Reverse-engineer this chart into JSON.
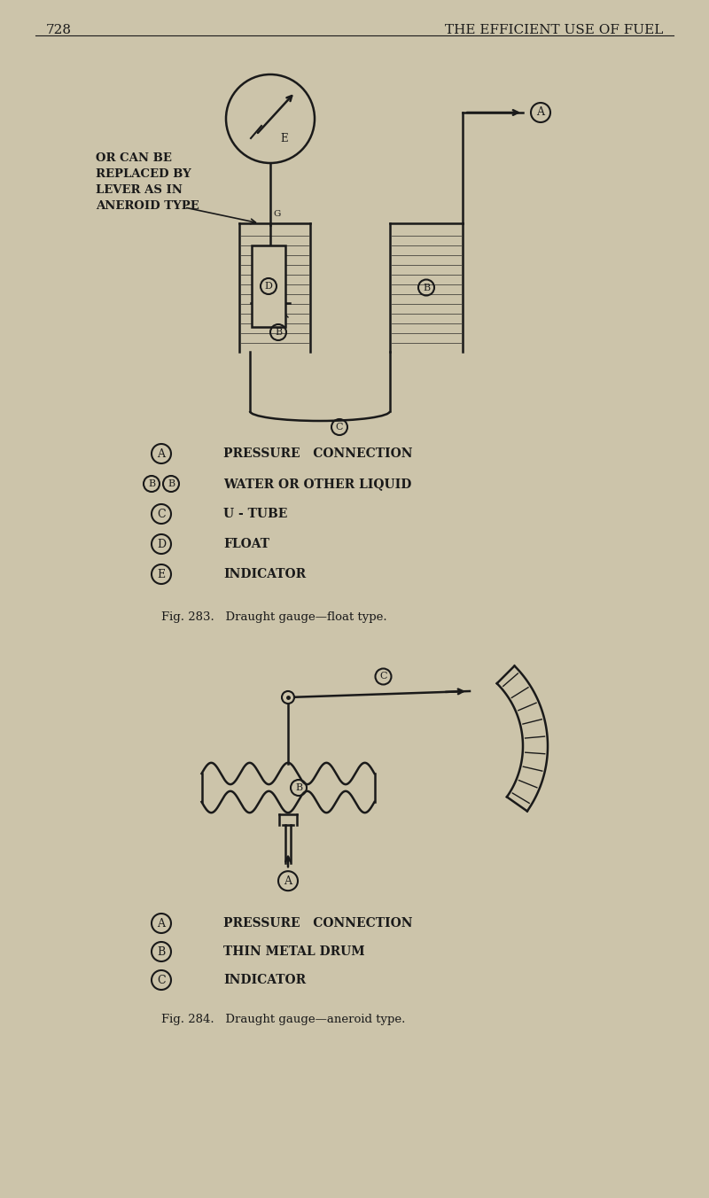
{
  "bg_color": "#ccc4aa",
  "line_color": "#1a1a1a",
  "page_number": "728",
  "header_text": "THE EFFICIENT USE OF FUEL",
  "fig1_caption": "Fig. 283.   Draught gauge—float type.",
  "fig2_caption": "Fig. 284.   Draught gauge—aneroid type.",
  "legend1": [
    [
      "A",
      "PRESSURE   CONNECTION"
    ],
    [
      "BB",
      "WATER OR OTHER LIQUID"
    ],
    [
      "C",
      "U - TUBE"
    ],
    [
      "D",
      "FLOAT"
    ],
    [
      "E",
      "INDICATOR"
    ]
  ],
  "legend2": [
    [
      "A",
      "PRESSURE   CONNECTION"
    ],
    [
      "B",
      "THIN METAL DRUM"
    ],
    [
      "C",
      "INDICATOR"
    ]
  ],
  "annotation_text": "OR CAN BE\nREPLACED BY\nLEVER AS IN\nANEROID TYPE"
}
